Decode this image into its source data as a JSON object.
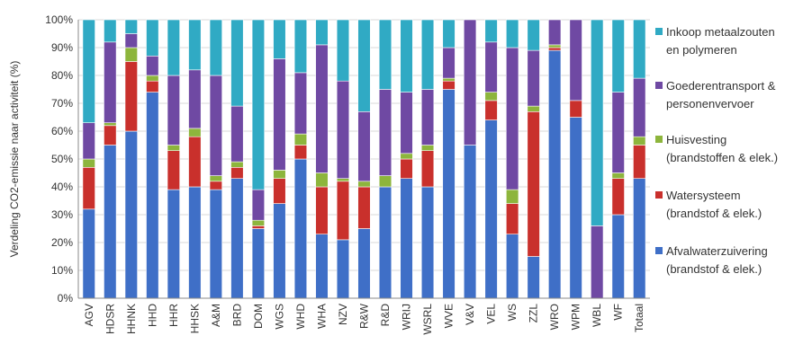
{
  "chart_data": {
    "type": "bar",
    "stacked": true,
    "percent": true,
    "ylabel": "Verdeling CO2-emissie naar activiteit (%)",
    "ylim": [
      0,
      100
    ],
    "yticks": [
      "0%",
      "10%",
      "20%",
      "30%",
      "40%",
      "50%",
      "60%",
      "70%",
      "80%",
      "90%",
      "100%"
    ],
    "grid": true,
    "legend_position": "right",
    "categories": [
      "AGV",
      "HDSR",
      "HHNK",
      "HHD",
      "HHR",
      "HHSK",
      "A&M",
      "BRD",
      "DOM",
      "WGS",
      "WHD",
      "WHA",
      "NZV",
      "R&W",
      "R&D",
      "WRIJ",
      "WSRL",
      "WVE",
      "V&V",
      "VEL",
      "WS",
      "ZZL",
      "WRO",
      "WPM",
      "WBL",
      "WF",
      "Totaal"
    ],
    "series": [
      {
        "name": "Afvalwaterzuivering (brandstof & elek.)",
        "color": "#3f6fc7",
        "values": [
          32,
          55,
          60,
          74,
          39,
          40,
          39,
          43,
          25,
          34,
          50,
          23,
          21,
          25,
          40,
          43,
          40,
          75,
          55,
          64,
          23,
          15,
          89,
          65,
          0,
          30,
          43
        ]
      },
      {
        "name": "Watersysteem (brandstof & elek.)",
        "color": "#c9302c",
        "values": [
          15,
          7,
          25,
          4,
          14,
          18,
          3,
          4,
          1,
          9,
          5,
          17,
          21,
          15,
          0,
          7,
          13,
          3,
          0,
          7,
          11,
          52,
          1,
          6,
          0,
          13,
          12
        ]
      },
      {
        "name": "Huisvesting (brandstoffen & elek.)",
        "color": "#8db53c",
        "values": [
          3,
          1,
          5,
          2,
          2,
          3,
          2,
          2,
          2,
          3,
          4,
          5,
          1,
          2,
          4,
          2,
          2,
          1,
          0,
          3,
          5,
          2,
          1,
          0,
          0,
          2,
          3
        ]
      },
      {
        "name": "Goederentransport & personenvervoer",
        "color": "#6f49a3",
        "values": [
          13,
          29,
          5,
          7,
          25,
          21,
          36,
          20,
          11,
          40,
          22,
          46,
          35,
          25,
          31,
          22,
          20,
          11,
          45,
          18,
          51,
          20,
          9,
          29,
          26,
          29,
          21
        ]
      },
      {
        "name": "Inkoop metaalzouten en polymeren",
        "color": "#30aac4",
        "values": [
          37,
          8,
          5,
          13,
          20,
          18,
          20,
          31,
          61,
          14,
          19,
          9,
          22,
          33,
          25,
          26,
          25,
          10,
          0,
          8,
          10,
          11,
          0,
          0,
          74,
          26,
          21
        ]
      }
    ],
    "legend": [
      {
        "line1": "Inkoop metaalzouten",
        "line2": "en polymeren",
        "color": "#30aac4"
      },
      {
        "line1": "Goederentransport &",
        "line2": "personenvervoer",
        "color": "#6f49a3"
      },
      {
        "line1": "Huisvesting",
        "line2": "(brandstoffen & elek.)",
        "color": "#8db53c"
      },
      {
        "line1": "Watersysteem",
        "line2": "(brandstof & elek.)",
        "color": "#c9302c"
      },
      {
        "line1": "Afvalwaterzuivering",
        "line2": "(brandstof & elek.)",
        "color": "#3f6fc7"
      }
    ]
  }
}
